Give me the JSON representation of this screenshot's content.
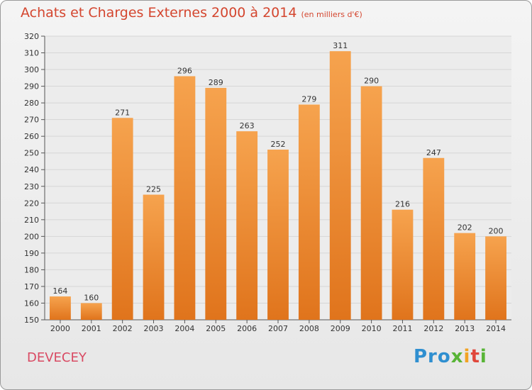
{
  "title": "Achats et Charges Externes 2000 à 2014",
  "subtitle": "(en milliers d'€)",
  "commune": "DEVECEY",
  "logo": {
    "p1": "Pro",
    "p2": "x",
    "p3": "i",
    "p4": "t",
    "p5": "i"
  },
  "colors": {
    "bar_top": "#f6a34e",
    "bar_bottom": "#e0741c",
    "title": "#d4462f",
    "commune": "#d94a63",
    "grid": "#d6d6d6"
  },
  "chart_data": {
    "type": "bar",
    "title": "Achats et Charges Externes 2000 à 2014",
    "subtitle": "(en milliers d'€)",
    "categories": [
      "2000",
      "2001",
      "2002",
      "2003",
      "2004",
      "2005",
      "2006",
      "2007",
      "2008",
      "2009",
      "2010",
      "2011",
      "2012",
      "2013",
      "2014"
    ],
    "values": [
      164,
      160,
      271,
      225,
      296,
      289,
      263,
      252,
      279,
      311,
      290,
      216,
      247,
      202,
      200
    ],
    "ylim": [
      150,
      320
    ],
    "yticks": [
      150,
      160,
      170,
      180,
      190,
      200,
      210,
      220,
      230,
      240,
      250,
      260,
      270,
      280,
      290,
      300,
      310,
      320
    ],
    "grid": true,
    "data_labels": true
  }
}
